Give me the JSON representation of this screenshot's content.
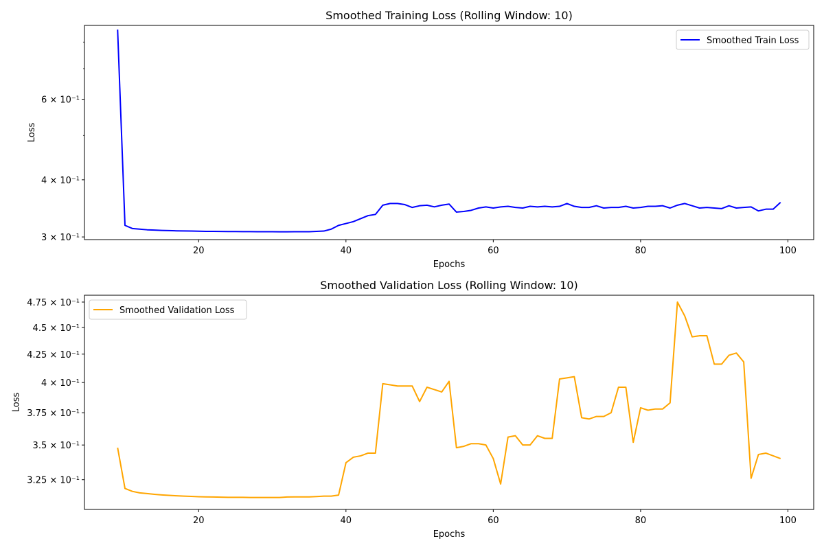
{
  "chart_data": [
    {
      "type": "line",
      "title": "Smoothed Training Loss (Rolling Window: 10)",
      "xlabel": "Epochs",
      "ylabel": "Loss",
      "yscale": "log",
      "xlim": [
        4.5,
        103.5
      ],
      "ylim": [
        0.296,
        0.87
      ],
      "grid": false,
      "legend_position": "top-right",
      "x_ticks": [
        20,
        40,
        60,
        80,
        100
      ],
      "x_tick_labels": [
        "20",
        "40",
        "60",
        "80",
        "100"
      ],
      "y_ticks": [
        0.3,
        0.4,
        0.6
      ],
      "y_tick_labels": [
        "3 × 10⁻¹",
        "4 × 10⁻¹",
        "6 × 10⁻¹"
      ],
      "y_minor_ticks": [
        0.5,
        0.7,
        0.8
      ],
      "series": [
        {
          "name": "Smoothed Train Loss",
          "color": "#0000ff",
          "x": [
            9,
            10,
            11,
            12,
            13,
            14,
            15,
            16,
            17,
            18,
            19,
            20,
            21,
            22,
            23,
            24,
            25,
            26,
            27,
            28,
            29,
            30,
            31,
            32,
            33,
            34,
            35,
            36,
            37,
            38,
            39,
            40,
            41,
            42,
            43,
            44,
            45,
            46,
            47,
            48,
            49,
            50,
            51,
            52,
            53,
            54,
            55,
            56,
            57,
            58,
            59,
            60,
            61,
            62,
            63,
            64,
            65,
            66,
            67,
            68,
            69,
            70,
            71,
            72,
            73,
            74,
            75,
            76,
            77,
            78,
            79,
            80,
            81,
            82,
            83,
            84,
            85,
            86,
            87,
            88,
            89,
            90,
            91,
            92,
            93,
            94,
            95,
            96,
            97,
            98,
            99
          ],
          "y": [
            0.852,
            0.318,
            0.313,
            0.312,
            0.311,
            0.3105,
            0.31,
            0.3097,
            0.3094,
            0.3092,
            0.309,
            0.3088,
            0.3086,
            0.3085,
            0.3084,
            0.3083,
            0.3082,
            0.3081,
            0.3081,
            0.308,
            0.308,
            0.308,
            0.3079,
            0.3079,
            0.308,
            0.308,
            0.308,
            0.3085,
            0.309,
            0.312,
            0.318,
            0.321,
            0.324,
            0.329,
            0.334,
            0.336,
            0.352,
            0.355,
            0.355,
            0.353,
            0.348,
            0.351,
            0.352,
            0.349,
            0.352,
            0.354,
            0.34,
            0.341,
            0.343,
            0.347,
            0.349,
            0.347,
            0.349,
            0.35,
            0.348,
            0.347,
            0.35,
            0.349,
            0.35,
            0.349,
            0.35,
            0.355,
            0.35,
            0.348,
            0.348,
            0.351,
            0.347,
            0.348,
            0.348,
            0.35,
            0.347,
            0.348,
            0.35,
            0.35,
            0.351,
            0.347,
            0.352,
            0.355,
            0.351,
            0.347,
            0.348,
            0.347,
            0.346,
            0.351,
            0.347,
            0.348,
            0.349,
            0.342,
            0.345,
            0.345,
            0.357
          ]
        }
      ]
    },
    {
      "type": "line",
      "title": "Smoothed Validation Loss (Rolling Window: 10)",
      "xlabel": "Epochs",
      "ylabel": "Loss",
      "yscale": "log",
      "xlim": [
        4.5,
        103.5
      ],
      "ylim": [
        0.305,
        0.482
      ],
      "grid": false,
      "legend_position": "top-left",
      "x_ticks": [
        20,
        40,
        60,
        80,
        100
      ],
      "x_tick_labels": [
        "20",
        "40",
        "60",
        "80",
        "100"
      ],
      "y_ticks": [
        0.325,
        0.35,
        0.375,
        0.4,
        0.425,
        0.45,
        0.475
      ],
      "y_tick_labels": [
        "3.25 × 10⁻¹",
        "3.5 × 10⁻¹",
        "3.75 × 10⁻¹",
        "4 × 10⁻¹",
        "4.25 × 10⁻¹",
        "4.5 × 10⁻¹",
        "4.75 × 10⁻¹"
      ],
      "series": [
        {
          "name": "Smoothed Validation Loss",
          "color": "#ffa500",
          "x": [
            9,
            10,
            11,
            12,
            13,
            14,
            15,
            16,
            17,
            18,
            19,
            20,
            21,
            22,
            23,
            24,
            25,
            26,
            27,
            28,
            29,
            30,
            31,
            32,
            33,
            34,
            35,
            36,
            37,
            38,
            39,
            40,
            41,
            42,
            43,
            44,
            45,
            46,
            47,
            48,
            49,
            50,
            51,
            52,
            53,
            54,
            55,
            56,
            57,
            58,
            59,
            60,
            61,
            62,
            63,
            64,
            65,
            66,
            67,
            68,
            69,
            70,
            71,
            72,
            73,
            74,
            75,
            76,
            77,
            78,
            79,
            80,
            81,
            82,
            83,
            84,
            85,
            86,
            87,
            88,
            89,
            90,
            91,
            92,
            93,
            94,
            95,
            96,
            97,
            98,
            99
          ],
          "y": [
            0.348,
            0.319,
            0.317,
            0.316,
            0.3155,
            0.315,
            0.3146,
            0.3143,
            0.314,
            0.3138,
            0.3136,
            0.3134,
            0.3133,
            0.3132,
            0.3131,
            0.313,
            0.313,
            0.313,
            0.3129,
            0.3129,
            0.3129,
            0.3129,
            0.3129,
            0.3132,
            0.3133,
            0.3133,
            0.3133,
            0.3135,
            0.3138,
            0.3138,
            0.3145,
            0.337,
            0.341,
            0.342,
            0.344,
            0.344,
            0.399,
            0.398,
            0.397,
            0.397,
            0.397,
            0.384,
            0.396,
            0.394,
            0.392,
            0.401,
            0.348,
            0.349,
            0.351,
            0.351,
            0.35,
            0.34,
            0.322,
            0.356,
            0.357,
            0.35,
            0.35,
            0.357,
            0.355,
            0.355,
            0.403,
            0.404,
            0.405,
            0.371,
            0.37,
            0.372,
            0.372,
            0.375,
            0.396,
            0.396,
            0.352,
            0.379,
            0.377,
            0.378,
            0.378,
            0.383,
            0.475,
            0.461,
            0.441,
            0.442,
            0.442,
            0.416,
            0.416,
            0.424,
            0.426,
            0.418,
            0.326,
            0.343,
            0.344,
            0.342,
            0.34
          ]
        }
      ]
    }
  ]
}
